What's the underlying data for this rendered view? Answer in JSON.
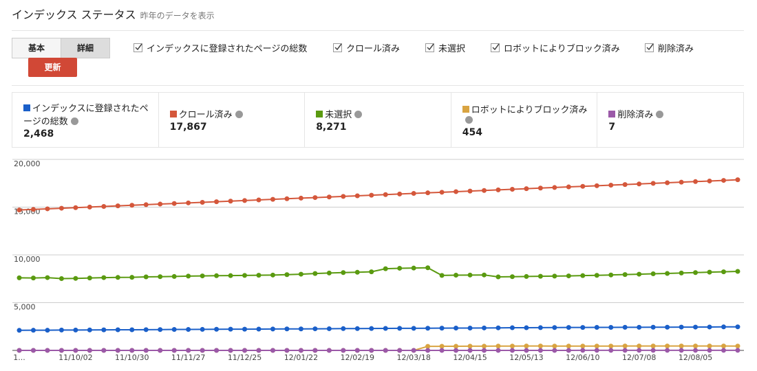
{
  "header": {
    "title": "インデックス ステータス",
    "subtitle": "昨年のデータを表示"
  },
  "tabs": [
    "基本",
    "詳細"
  ],
  "filters": [
    "インデックスに登録されたページの総数",
    "クロール済み",
    "未選択",
    "ロボットによりブロック済み",
    "削除済み"
  ],
  "button": "更新",
  "summary": [
    {
      "label": "インデックスに登録されたページの総数",
      "value": "2,468"
    },
    {
      "label": "クロール済み",
      "value": "17,867"
    },
    {
      "label": "未選択",
      "value": "8,271"
    },
    {
      "label": "ロボットによりブロック済み",
      "value": "454"
    },
    {
      "label": "削除済み",
      "value": "7"
    }
  ],
  "chart_data": {
    "type": "line",
    "categories": [
      "1...",
      null,
      null,
      null,
      "11/10/02",
      null,
      null,
      null,
      "11/10/30",
      null,
      null,
      null,
      "11/11/27",
      null,
      null,
      null,
      "11/12/25",
      null,
      null,
      null,
      "12/01/22",
      null,
      null,
      null,
      "12/02/19",
      null,
      null,
      null,
      "12/03/18",
      null,
      null,
      null,
      "12/04/15",
      null,
      null,
      null,
      "12/05/13",
      null,
      null,
      null,
      "12/06/10",
      null,
      null,
      null,
      "12/07/08",
      null,
      null,
      null,
      "12/08/05",
      null,
      null,
      null
    ],
    "ylim": [
      0,
      20000
    ],
    "yticks": [
      {
        "value": 5000,
        "label": "5,000"
      },
      {
        "value": 10000,
        "label": "10,000"
      },
      {
        "value": 15000,
        "label": "15,000"
      },
      {
        "value": 20000,
        "label": "20,000"
      }
    ],
    "grid": true,
    "series": [
      {
        "name": "クロール済み",
        "color": "#d4573b",
        "values": [
          14700,
          14762,
          14824,
          14886,
          14948,
          15010,
          15072,
          15134,
          15196,
          15258,
          15320,
          15382,
          15444,
          15506,
          15568,
          15630,
          15692,
          15754,
          15816,
          15878,
          15940,
          16002,
          16064,
          16126,
          16188,
          16250,
          16312,
          16374,
          16436,
          16498,
          16560,
          16622,
          16684,
          16746,
          16808,
          16870,
          16932,
          16994,
          17056,
          17118,
          17180,
          17242,
          17304,
          17366,
          17428,
          17490,
          17552,
          17614,
          17676,
          17738,
          17800,
          17867
        ]
      },
      {
        "name": "未選択",
        "color": "#5a9a10",
        "values": [
          7600,
          7580,
          7620,
          7520,
          7540,
          7580,
          7620,
          7640,
          7650,
          7700,
          7720,
          7740,
          7780,
          7800,
          7820,
          7830,
          7850,
          7870,
          7890,
          7930,
          7980,
          8050,
          8100,
          8150,
          8180,
          8230,
          8550,
          8600,
          8620,
          8650,
          7850,
          7880,
          7890,
          7900,
          7700,
          7720,
          7740,
          7760,
          7780,
          7800,
          7830,
          7860,
          7900,
          7940,
          7980,
          8020,
          8060,
          8100,
          8150,
          8190,
          8230,
          8271
        ]
      },
      {
        "name": "インデックスに登録されたページの総数",
        "color": "#1a5fc9",
        "values": [
          2100,
          2110,
          2110,
          2130,
          2130,
          2140,
          2150,
          2160,
          2160,
          2170,
          2180,
          2190,
          2190,
          2200,
          2210,
          2220,
          2220,
          2230,
          2240,
          2250,
          2250,
          2260,
          2270,
          2280,
          2280,
          2290,
          2300,
          2310,
          2310,
          2320,
          2330,
          2340,
          2340,
          2350,
          2360,
          2370,
          2370,
          2380,
          2390,
          2400,
          2400,
          2410,
          2410,
          2420,
          2420,
          2430,
          2430,
          2440,
          2440,
          2450,
          2460,
          2468
        ]
      },
      {
        "name": "ロボットによりブロック済み",
        "color": "#d9a441",
        "values": [
          0,
          0,
          0,
          0,
          0,
          0,
          0,
          0,
          0,
          0,
          0,
          0,
          0,
          0,
          0,
          0,
          0,
          0,
          0,
          0,
          0,
          0,
          0,
          0,
          0,
          0,
          0,
          0,
          0,
          420,
          430,
          430,
          440,
          440,
          450,
          450,
          460,
          460,
          450,
          450,
          450,
          450,
          450,
          460,
          460,
          460,
          460,
          460,
          460,
          460,
          460,
          454
        ]
      },
      {
        "name": "削除済み",
        "color": "#9b59a8",
        "values": [
          0,
          0,
          0,
          0,
          0,
          0,
          0,
          0,
          0,
          0,
          0,
          0,
          0,
          0,
          0,
          0,
          0,
          0,
          0,
          0,
          0,
          0,
          0,
          0,
          0,
          0,
          0,
          0,
          0,
          0,
          0,
          0,
          0,
          0,
          0,
          0,
          0,
          0,
          0,
          0,
          5,
          5,
          5,
          5,
          5,
          5,
          5,
          5,
          5,
          5,
          5,
          7
        ]
      }
    ]
  }
}
